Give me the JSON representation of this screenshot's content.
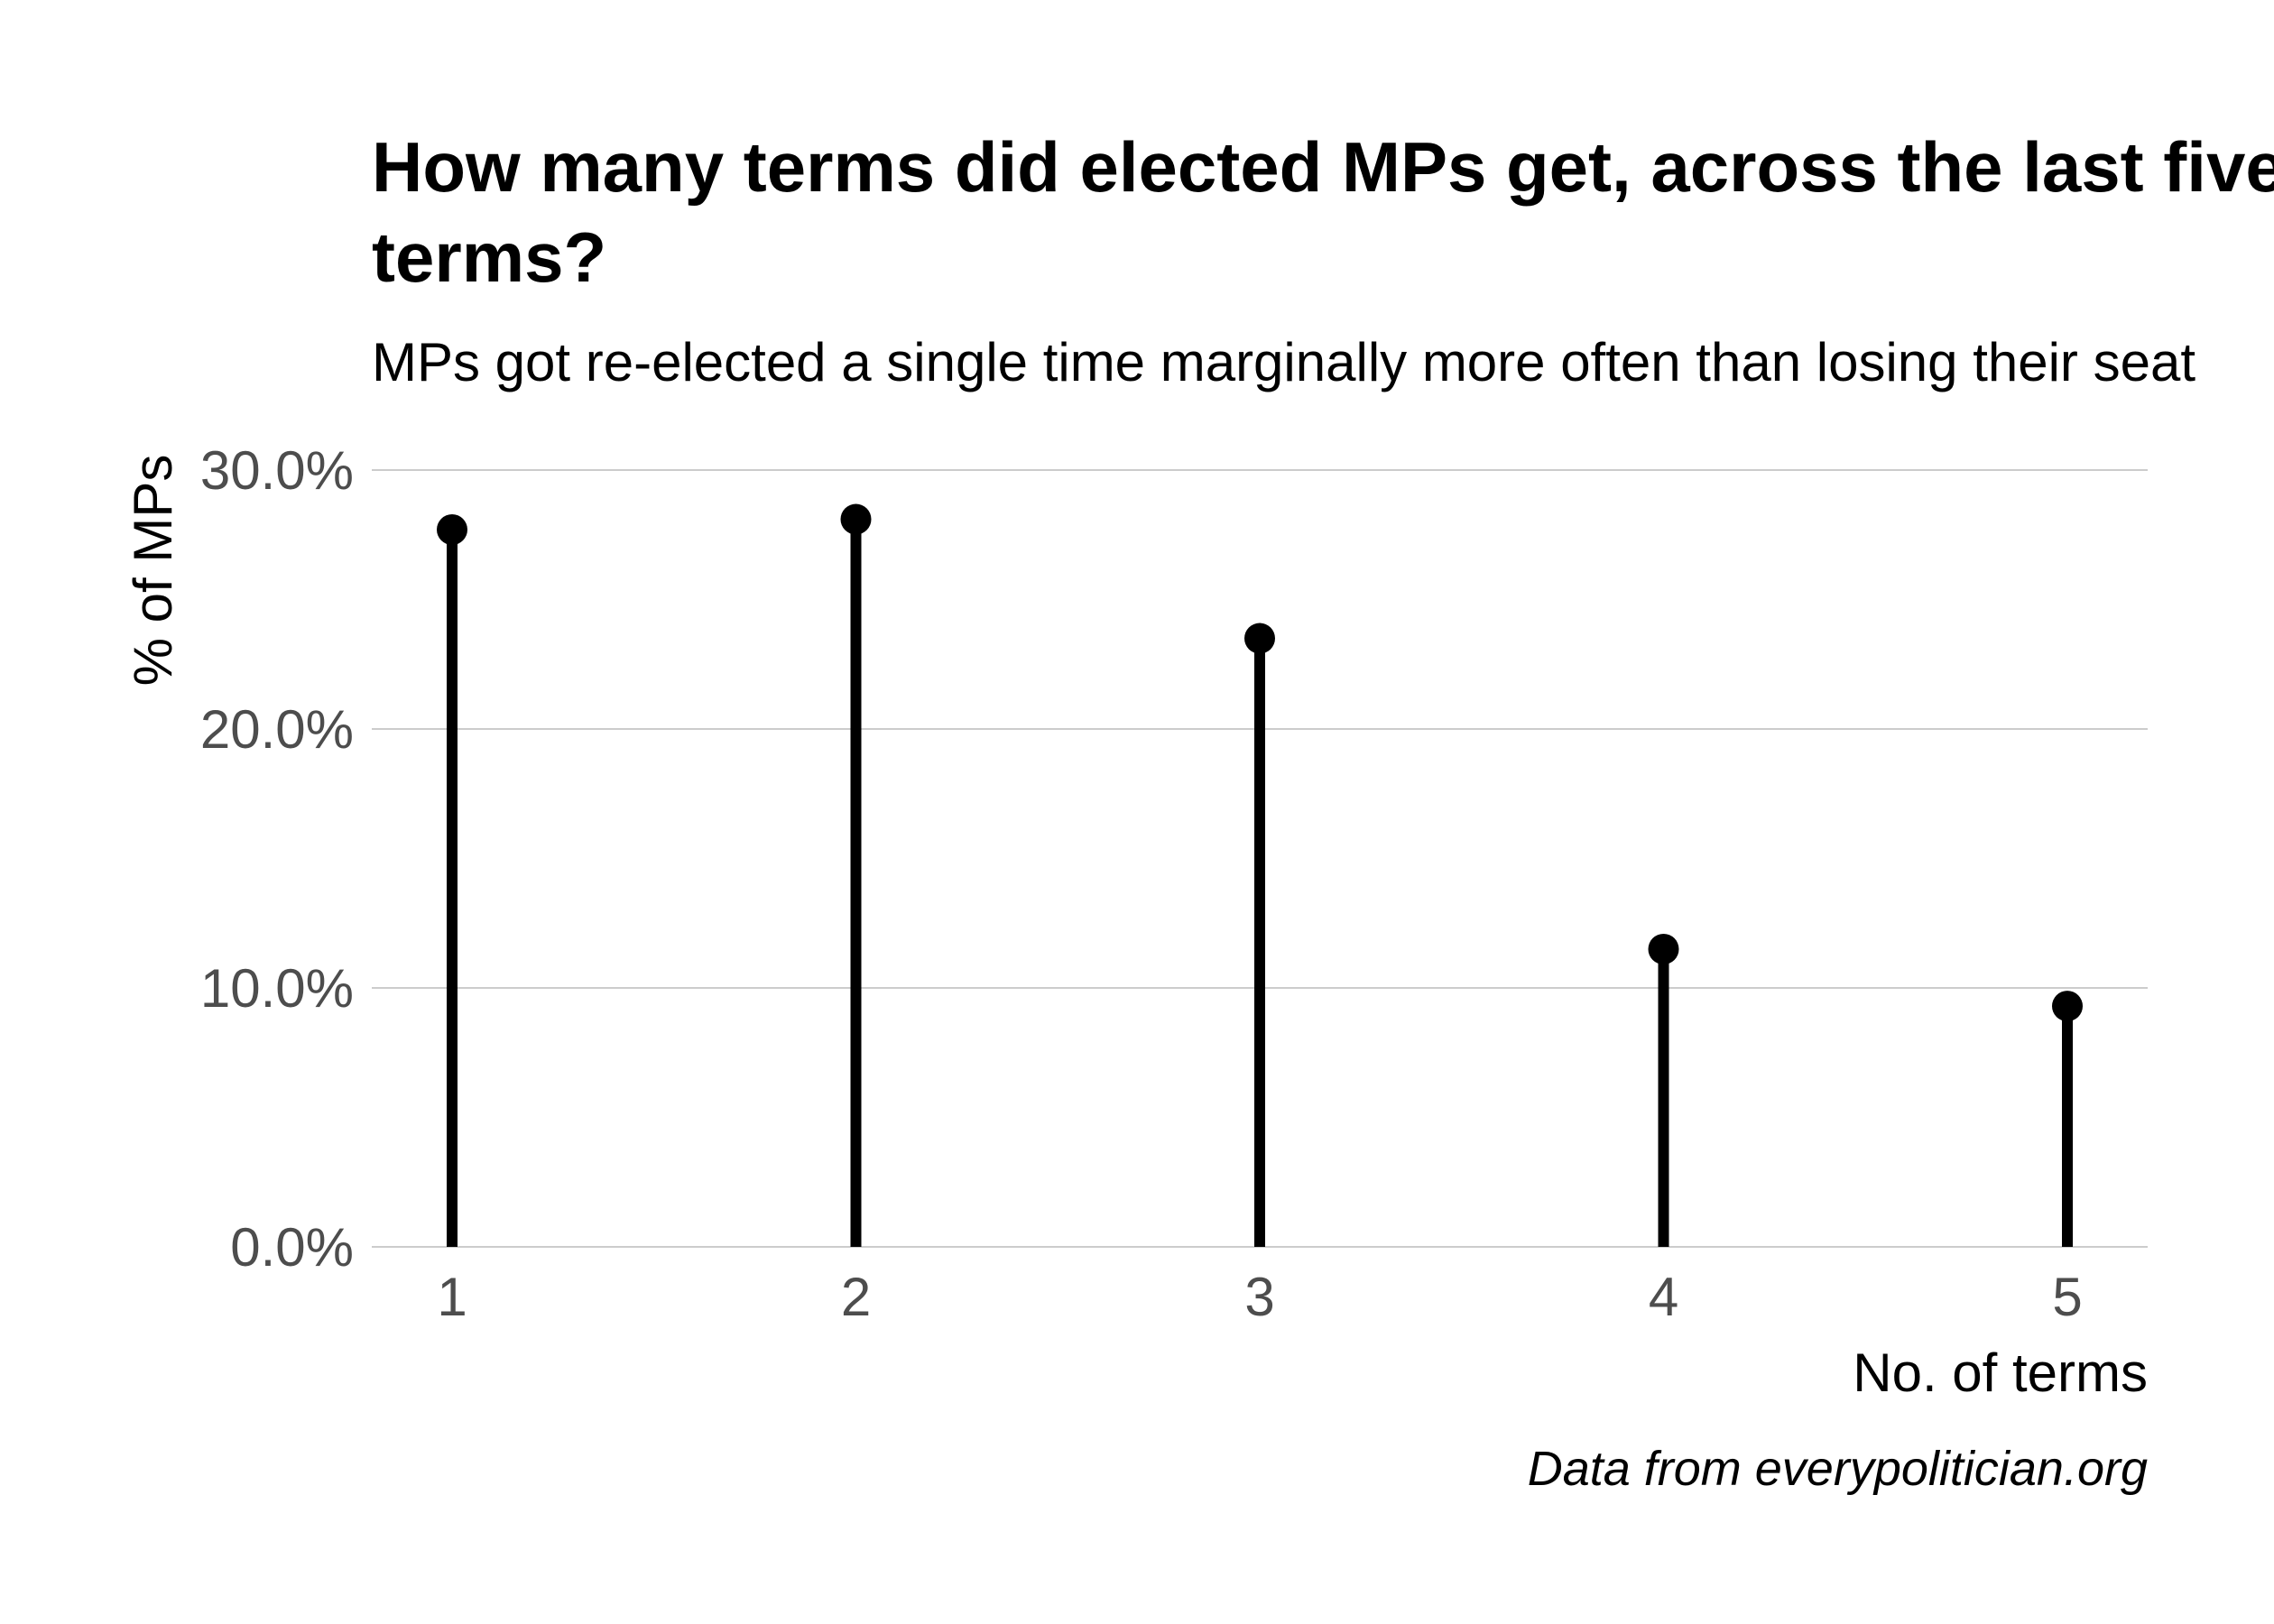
{
  "chart_data": {
    "type": "lollipop",
    "title_lines": [
      "How many terms did elected MPs get, across the last five",
      "terms?"
    ],
    "subtitle": "MPs got re-elected a single time marginally more often than losing their seat",
    "xlabel": "No. of terms",
    "ylabel": "% of MPs",
    "caption": "Data from everypolitician.org",
    "categories": [
      "1",
      "2",
      "3",
      "4",
      "5"
    ],
    "values": [
      27.7,
      28.1,
      23.5,
      11.5,
      9.3
    ],
    "ylim": [
      0,
      30
    ],
    "yticks": [
      {
        "value": 0,
        "label": "0.0%"
      },
      {
        "value": 10,
        "label": "10.0%"
      },
      {
        "value": 20,
        "label": "20.0%"
      },
      {
        "value": 30,
        "label": "30.0%"
      }
    ],
    "grid": true,
    "stem_color": "#000000",
    "grid_color": "#cccccc"
  }
}
